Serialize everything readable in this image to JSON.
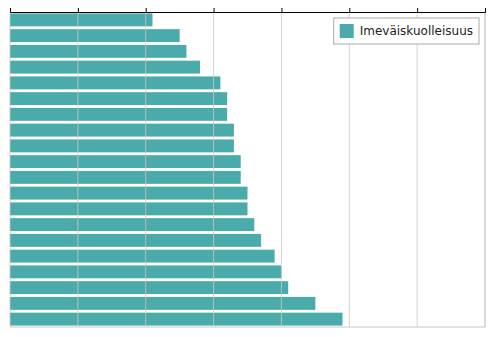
{
  "chart_data": {
    "type": "bar",
    "orientation": "horizontal",
    "categories": [
      null,
      null,
      null,
      null,
      null,
      null,
      null,
      null,
      null,
      null,
      null,
      null,
      null,
      null,
      null,
      null,
      null,
      null,
      null,
      null
    ],
    "series": [
      {
        "name": "Imeväiskuolleisuus",
        "color": "#4aabaa",
        "values": [
          4.9,
          4.5,
          4.1,
          4.0,
          3.9,
          3.7,
          3.6,
          3.5,
          3.5,
          3.4,
          3.4,
          3.3,
          3.3,
          3.2,
          3.2,
          3.1,
          2.8,
          2.6,
          2.5,
          2.1
        ]
      }
    ],
    "xlim": [
      0,
      7
    ],
    "xticks": [
      0,
      1,
      2,
      3,
      4,
      5,
      6,
      7
    ],
    "grid": true,
    "legend": "upper right",
    "tick_labels": false
  }
}
